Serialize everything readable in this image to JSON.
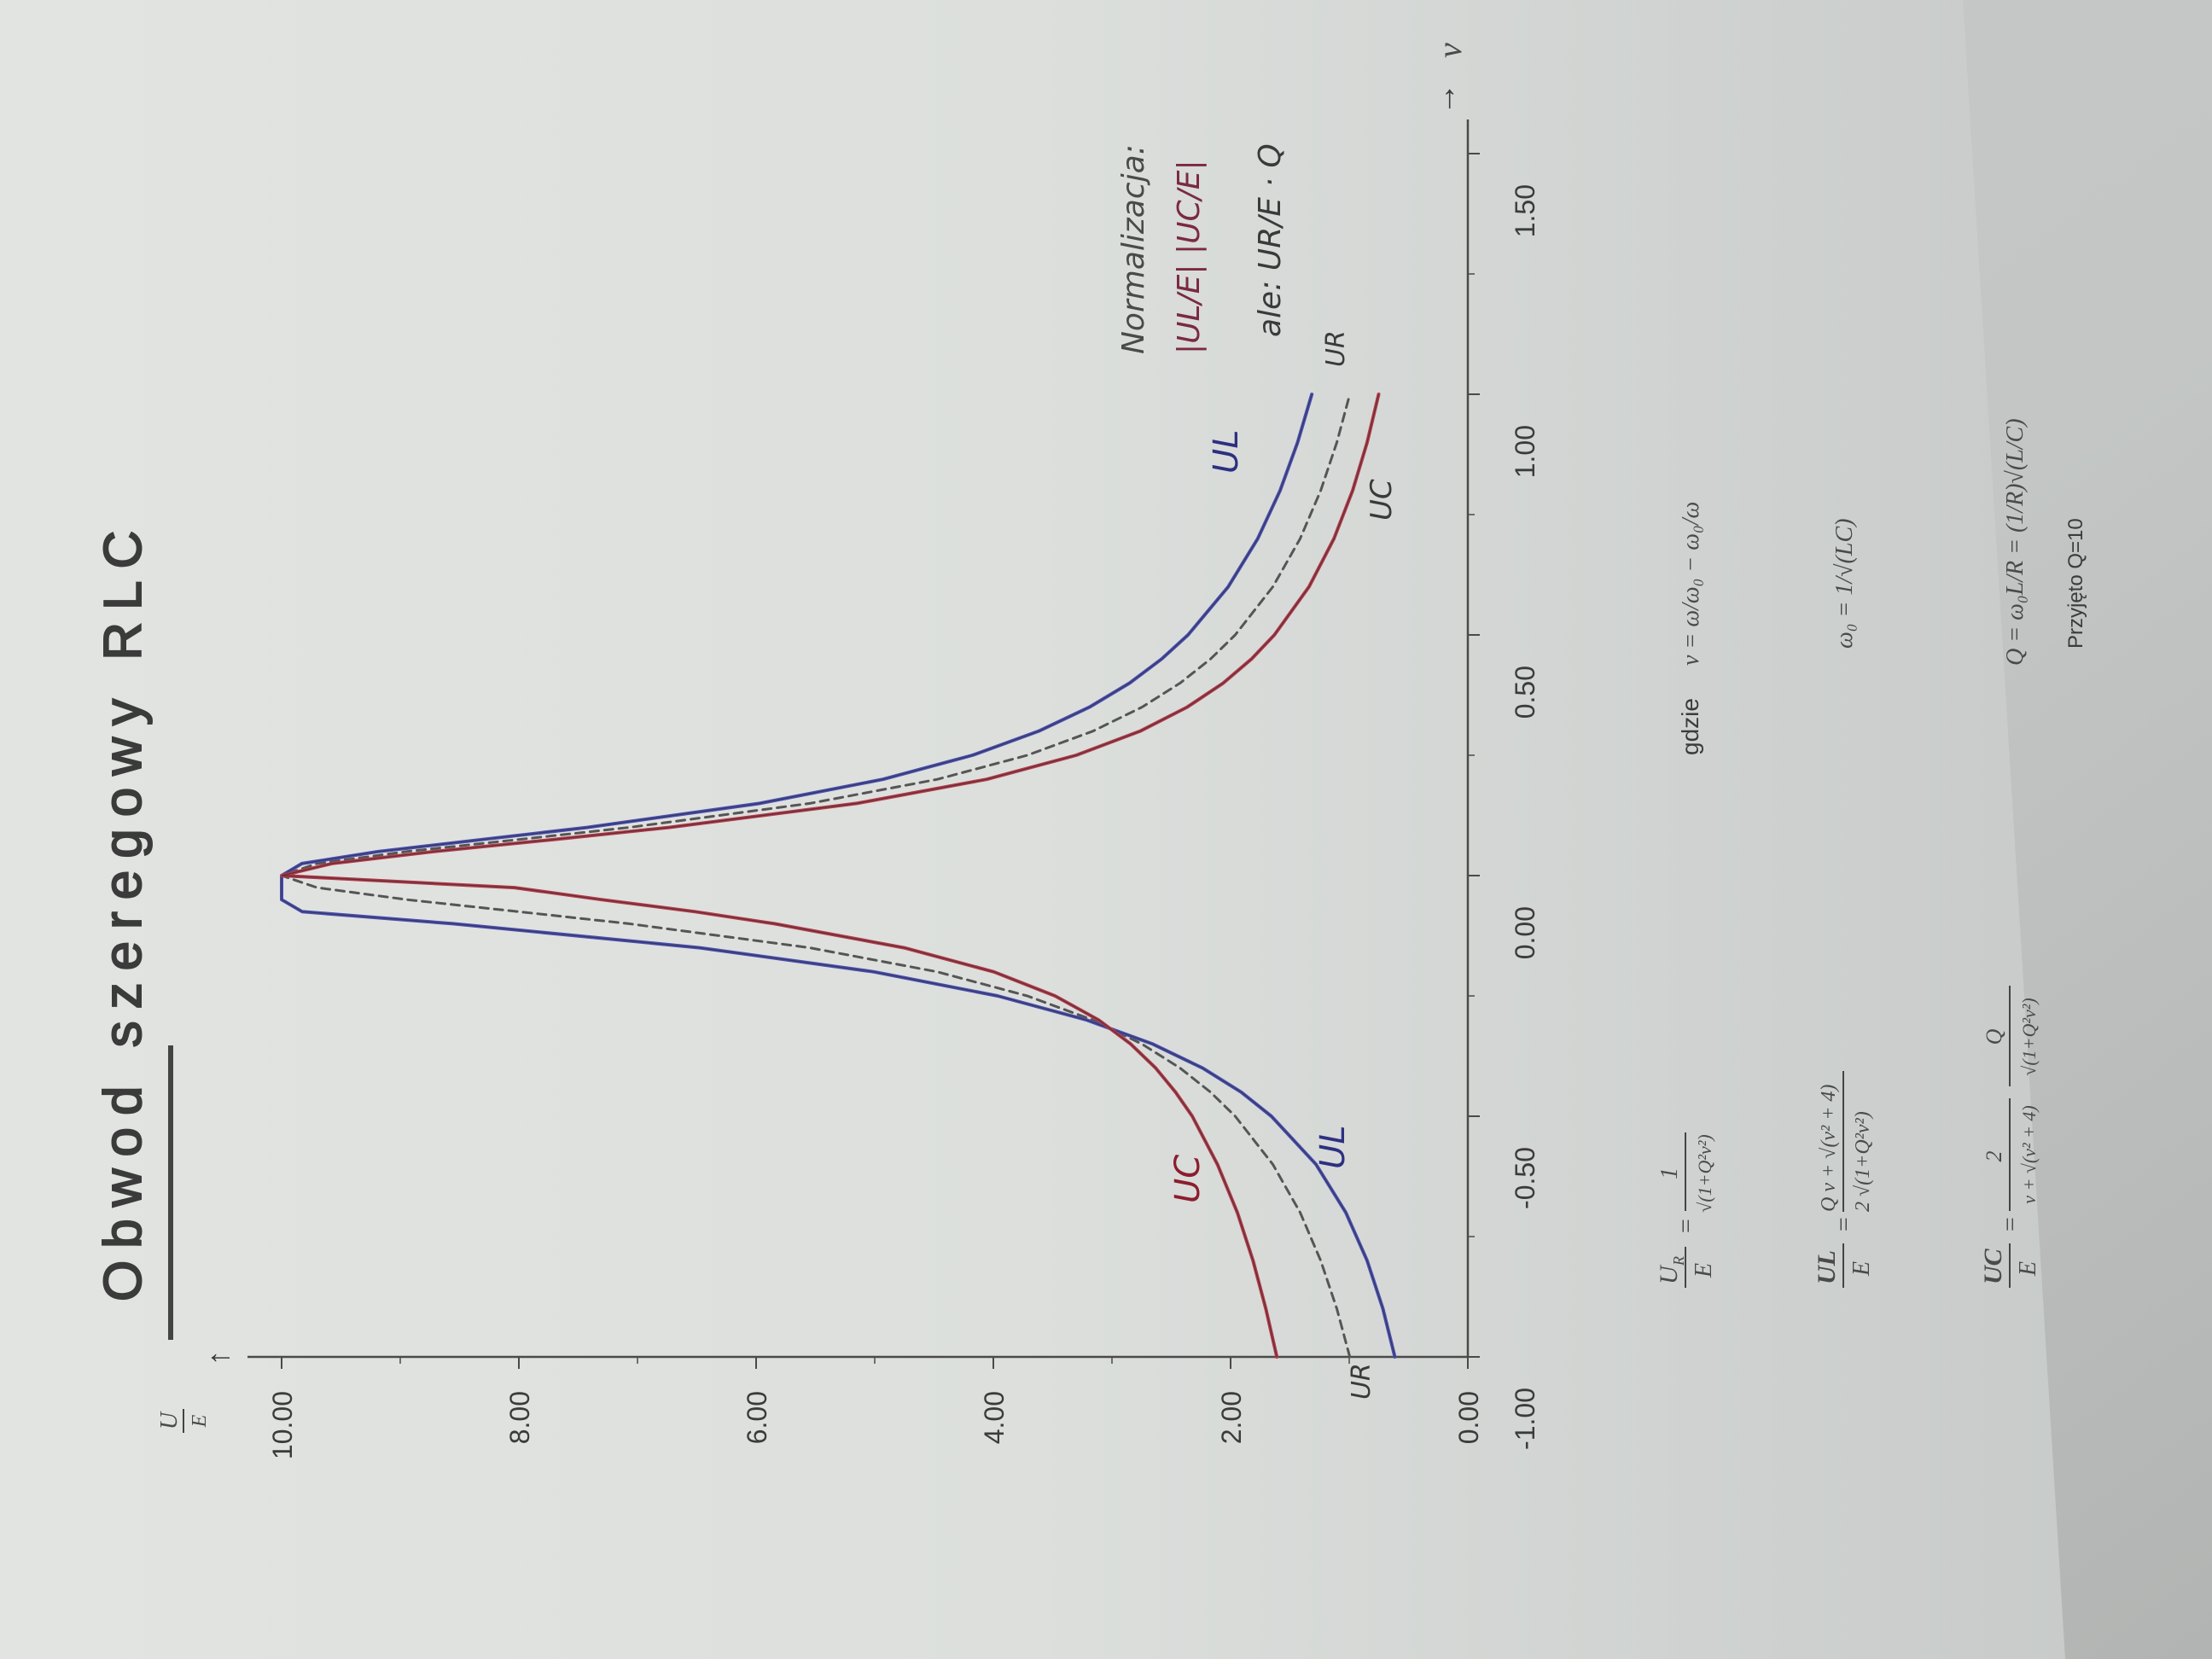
{
  "page": {
    "title": "Obwod szeregowy RLC"
  },
  "colors": {
    "paper": "#d9dcd9",
    "print": "#3b3b3b",
    "u_r": "#555555",
    "u_l": "#4a4fb0",
    "u_c": "#b23a4a"
  },
  "chart_data": {
    "type": "line",
    "title": "Obwod szeregowy RLC",
    "xlabel": "ν",
    "ylabel": "U/E",
    "xlim": [
      -1.0,
      1.5
    ],
    "ylim": [
      0.0,
      10.0
    ],
    "x_ticks": [
      "-1.00",
      "-0.50",
      "0.00",
      "0.50",
      "1.00",
      "1.50"
    ],
    "y_ticks": [
      "0.00",
      "2.00",
      "4.00",
      "6.00",
      "8.00",
      "10.00"
    ],
    "Q": 10,
    "x": [
      -1.0,
      -0.9,
      -0.8,
      -0.7,
      -0.6,
      -0.5,
      -0.45,
      -0.4,
      -0.35,
      -0.3,
      -0.25,
      -0.2,
      -0.15,
      -0.1,
      -0.075,
      -0.05,
      -0.025,
      0.0,
      0.025,
      0.05,
      0.075,
      0.1,
      0.15,
      0.2,
      0.25,
      0.3,
      0.35,
      0.4,
      0.45,
      0.5,
      0.6,
      0.7,
      0.8,
      0.9,
      1.0
    ],
    "series": [
      {
        "name": "U_R",
        "style": "dashed",
        "values": [
          0.995,
          1.104,
          1.24,
          1.414,
          1.644,
          1.961,
          2.169,
          2.425,
          2.747,
          3.162,
          3.714,
          4.472,
          5.547,
          7.071,
          8.0,
          8.944,
          9.701,
          10.0,
          9.701,
          8.944,
          8.0,
          7.071,
          5.547,
          4.472,
          3.714,
          3.162,
          2.747,
          2.425,
          2.169,
          1.961,
          1.644,
          1.414,
          1.24,
          1.104,
          0.995
        ]
      },
      {
        "name": "U_L",
        "style": "solid",
        "values": [
          0.615,
          0.716,
          0.849,
          1.029,
          1.28,
          1.656,
          1.91,
          2.235,
          2.656,
          3.213,
          3.964,
          5.006,
          6.475,
          8.555,
          9.826,
          10.96,
          11.71,
          10.0,
          9.829,
          9.184,
          8.306,
          7.425,
          5.97,
          4.931,
          4.177,
          3.619,
          3.19,
          2.851,
          2.581,
          2.359,
          2.02,
          1.771,
          1.583,
          1.435,
          1.315
        ]
      },
      {
        "name": "U_C",
        "style": "solid",
        "values": [
          1.61,
          1.703,
          1.811,
          1.943,
          2.111,
          2.323,
          2.464,
          2.631,
          2.842,
          3.112,
          3.48,
          3.996,
          4.752,
          5.845,
          6.514,
          7.303,
          8.037,
          10.0,
          9.576,
          8.713,
          7.706,
          6.735,
          5.151,
          4.056,
          3.302,
          2.763,
          2.366,
          2.062,
          1.824,
          1.631,
          1.339,
          1.129,
          0.971,
          0.849,
          0.752
        ]
      }
    ]
  },
  "curve_labels": {
    "u_l_right": "UL",
    "u_c_right": "UC",
    "u_r_right": "UR",
    "u_c_left": "UC",
    "u_l_left": "UL",
    "u_r_left": "UR"
  },
  "axes_marks": {
    "x_arrow": "→",
    "x_symbol": "ν",
    "y_arrow": "↑",
    "y_fraction_top": "U",
    "y_fraction_bottom": "E"
  },
  "formulas": {
    "ur": {
      "lhs_top": "U",
      "lhs_sub": "R",
      "lhs_bottom": "E",
      "num": "1",
      "den": "√(1+Q²ν²)"
    },
    "ul": {
      "lhs_top": "UL",
      "lhs_bottom": "E",
      "num": "Q  ν + √(ν² + 4)",
      "den": "2  √(1+Q²ν²)"
    },
    "uc": {
      "lhs_top": "UC",
      "lhs_bottom": "E",
      "num_a": "2",
      "den_a": "ν + √(ν² + 4)",
      "num_b": "Q",
      "den_b": "√(1+Q²ν²)"
    },
    "gdzie": "gdzie",
    "nu_def": "ν = ω/ω₀ − ω₀/ω",
    "omega_def": "ω₀ = 1/√(LC)",
    "q_def": "Q = ω₀L/R = (1/R)√(L/C)",
    "q_note": "Przyjęto Q=10"
  },
  "annotation": {
    "line1": "Normalizacja:",
    "line2": "|UL/E|  |UC/E|",
    "line3": "ale:  UR/E · Q"
  }
}
